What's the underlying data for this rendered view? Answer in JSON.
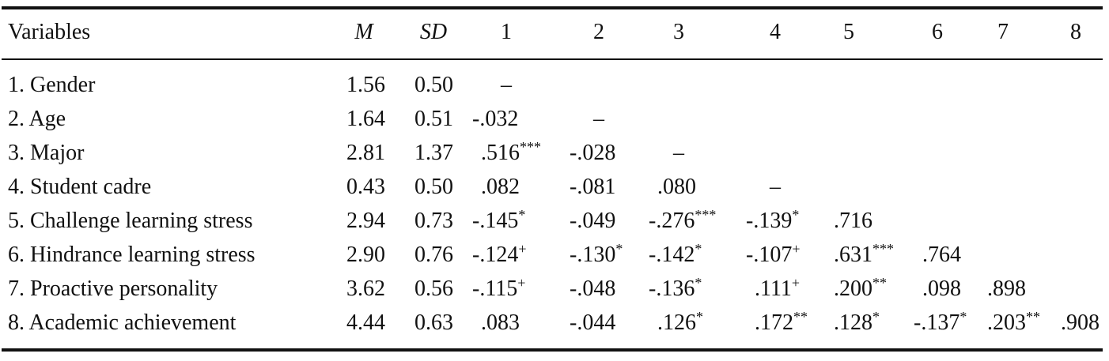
{
  "table": {
    "header": [
      "Variables",
      "M",
      "SD",
      "1",
      "2",
      "3",
      "4",
      "5",
      "6",
      "7",
      "8"
    ],
    "rows": [
      [
        "1. Gender",
        "1.56",
        "0.50",
        "–"
      ],
      [
        "2. Age",
        "1.64",
        "0.51",
        "-.032",
        "–"
      ],
      [
        "3. Major",
        "2.81",
        "1.37",
        {
          "v": ".516",
          "sup": "***"
        },
        "-.028",
        "–"
      ],
      [
        "4. Student cadre",
        "0.43",
        "0.50",
        ".082",
        "-.081",
        ".080",
        "–"
      ],
      [
        "5. Challenge learning stress",
        "2.94",
        "0.73",
        {
          "v": "-.145",
          "sup": "*"
        },
        "-.049",
        {
          "v": "-.276",
          "sup": "***"
        },
        {
          "v": "-.139",
          "sup": "*"
        },
        ".716"
      ],
      [
        "6. Hindrance learning stress",
        "2.90",
        "0.76",
        {
          "v": "-.124",
          "sup": "+"
        },
        {
          "v": "-.130",
          "sup": "*"
        },
        {
          "v": "-.142",
          "sup": "*"
        },
        {
          "v": "-.107",
          "sup": "+"
        },
        {
          "v": ".631",
          "sup": "***"
        },
        ".764"
      ],
      [
        "7. Proactive personality",
        "3.62",
        "0.56",
        {
          "v": "-.115",
          "sup": "+"
        },
        "-.048",
        {
          "v": "-.136",
          "sup": "*"
        },
        {
          "v": ".111",
          "sup": "+"
        },
        {
          "v": ".200",
          "sup": "**"
        },
        ".098",
        ".898"
      ],
      [
        "8. Academic achievement",
        "4.44",
        "0.63",
        ".083",
        "-.044",
        {
          "v": ".126",
          "sup": "*"
        },
        {
          "v": ".172",
          "sup": "**"
        },
        {
          "v": ".128",
          "sup": "*"
        },
        {
          "v": "-.137",
          "sup": "*"
        },
        {
          "v": ".203",
          "sup": "**"
        },
        ".908"
      ]
    ]
  }
}
